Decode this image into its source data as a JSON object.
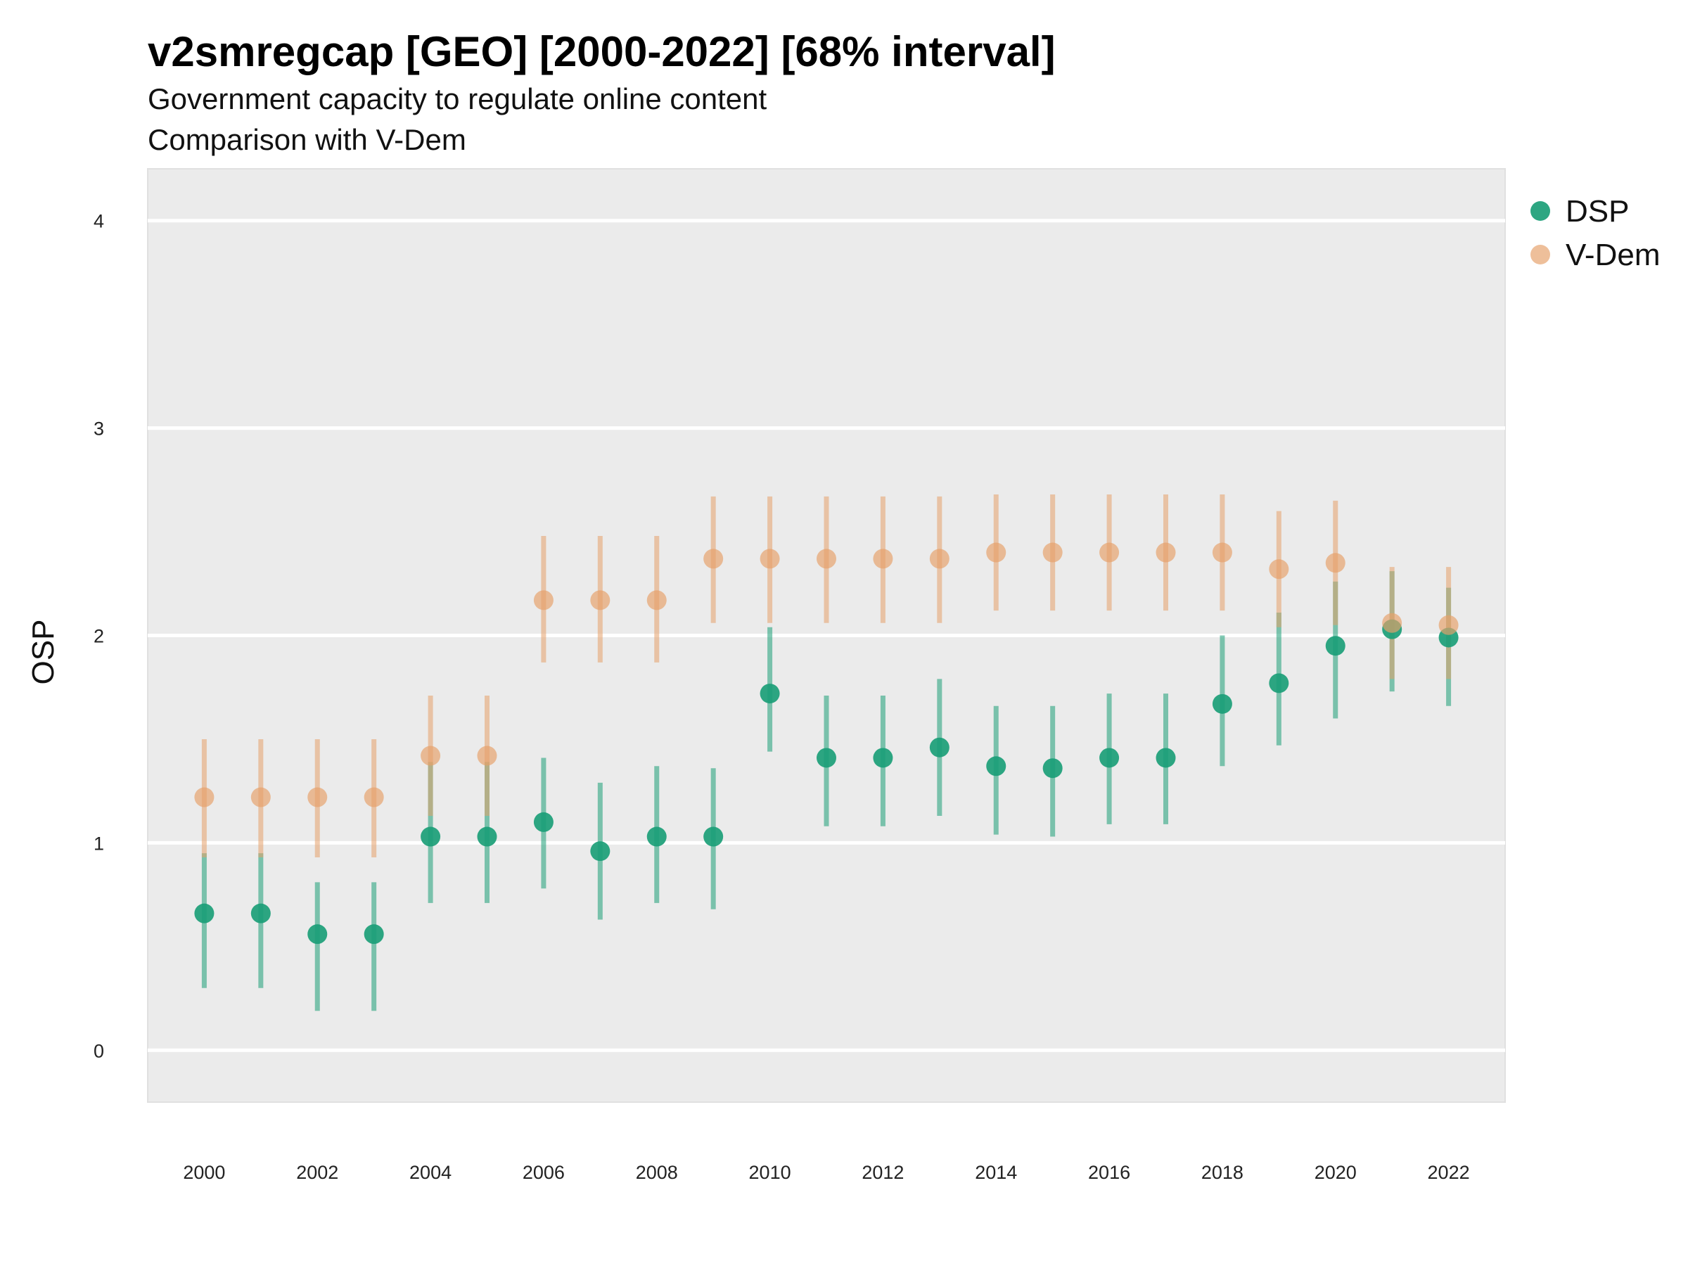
{
  "chart_data": {
    "type": "scatter",
    "title": "v2smregcap [GEO] [2000-2022] [68% interval]",
    "subtitle": "Government capacity to regulate online content",
    "caption_line2": "Comparison with V-Dem",
    "ylabel": "OSP",
    "xlabel": "",
    "xlim": [
      1999,
      2023
    ],
    "ylim": [
      -0.25,
      4.25
    ],
    "yticks": [
      0,
      1,
      2,
      3,
      4
    ],
    "xticks": [
      2000,
      2002,
      2004,
      2006,
      2008,
      2010,
      2012,
      2014,
      2016,
      2018,
      2020,
      2022
    ],
    "grid": "horizontal",
    "legend_position": "right",
    "x": [
      2000,
      2001,
      2002,
      2003,
      2004,
      2005,
      2006,
      2007,
      2008,
      2009,
      2010,
      2011,
      2012,
      2013,
      2014,
      2015,
      2016,
      2017,
      2018,
      2019,
      2020,
      2021,
      2022
    ],
    "series": [
      {
        "name": "DSP",
        "color": "#1b9e77",
        "values": [
          0.66,
          0.66,
          0.56,
          0.56,
          1.03,
          1.03,
          1.1,
          0.96,
          1.03,
          1.03,
          1.72,
          1.41,
          1.41,
          1.46,
          1.37,
          1.36,
          1.41,
          1.41,
          1.67,
          1.77,
          1.95,
          2.03,
          1.99
        ],
        "lower": [
          0.3,
          0.3,
          0.19,
          0.19,
          0.71,
          0.71,
          0.78,
          0.63,
          0.71,
          0.68,
          1.44,
          1.08,
          1.08,
          1.13,
          1.04,
          1.03,
          1.09,
          1.09,
          1.37,
          1.47,
          1.6,
          1.73,
          1.66
        ],
        "upper": [
          0.95,
          0.95,
          0.81,
          0.81,
          1.39,
          1.39,
          1.41,
          1.29,
          1.37,
          1.36,
          2.04,
          1.71,
          1.71,
          1.79,
          1.66,
          1.66,
          1.72,
          1.72,
          2.0,
          2.11,
          2.26,
          2.31,
          2.23
        ]
      },
      {
        "name": "V-Dem",
        "color": "#e6a06a",
        "values": [
          1.22,
          1.22,
          1.22,
          1.22,
          1.42,
          1.42,
          2.17,
          2.17,
          2.17,
          2.37,
          2.37,
          2.37,
          2.37,
          2.37,
          2.4,
          2.4,
          2.4,
          2.4,
          2.4,
          2.32,
          2.35,
          2.06,
          2.05
        ],
        "lower": [
          0.93,
          0.93,
          0.93,
          0.93,
          1.13,
          1.13,
          1.87,
          1.87,
          1.87,
          2.06,
          2.06,
          2.06,
          2.06,
          2.06,
          2.12,
          2.12,
          2.12,
          2.12,
          2.12,
          2.04,
          2.05,
          1.79,
          1.79
        ],
        "upper": [
          1.5,
          1.5,
          1.5,
          1.5,
          1.71,
          1.71,
          2.48,
          2.48,
          2.48,
          2.67,
          2.67,
          2.67,
          2.67,
          2.67,
          2.68,
          2.68,
          2.68,
          2.68,
          2.68,
          2.6,
          2.65,
          2.33,
          2.33
        ]
      }
    ]
  }
}
